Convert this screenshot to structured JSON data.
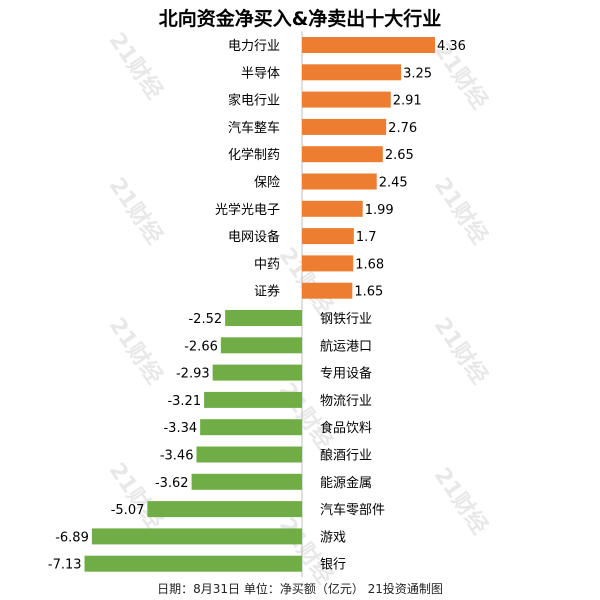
{
  "chart_data": {
    "type": "bar",
    "orientation": "horizontal",
    "title": "北向资金净买入&净卖出十大行业",
    "footer": "日期：8月31日 单位：净买额（亿元） 21投资通制图",
    "watermark": "21财经",
    "categories": [
      "电力行业",
      "半导体",
      "家电行业",
      "汽车整车",
      "化学制药",
      "保险",
      "光学光电子",
      "电网设备",
      "中药",
      "证券",
      "钢铁行业",
      "航运港口",
      "专用设备",
      "物流行业",
      "食品饮料",
      "酿酒行业",
      "能源金属",
      "汽车零部件",
      "游戏",
      "银行"
    ],
    "values": [
      4.36,
      3.25,
      2.91,
      2.76,
      2.65,
      2.45,
      1.99,
      1.7,
      1.68,
      1.65,
      -2.52,
      -2.66,
      -2.93,
      -3.21,
      -3.34,
      -3.46,
      -3.62,
      -5.07,
      -6.89,
      -7.13
    ],
    "value_labels": [
      "4.36",
      "3.25",
      "2.91",
      "2.76",
      "2.65",
      "2.45",
      "1.99",
      "1.7",
      "1.68",
      "1.65",
      "-2.52",
      "-2.66",
      "-2.93",
      "-3.21",
      "-3.34",
      "-3.46",
      "-3.62",
      "-5.07",
      "-6.89",
      "-7.13"
    ],
    "colors": {
      "positive": "#ED7D31",
      "negative": "#70AD47",
      "axis": "#BFBFBF",
      "watermark": "#DADADA"
    },
    "grid": false,
    "legend": "none"
  }
}
